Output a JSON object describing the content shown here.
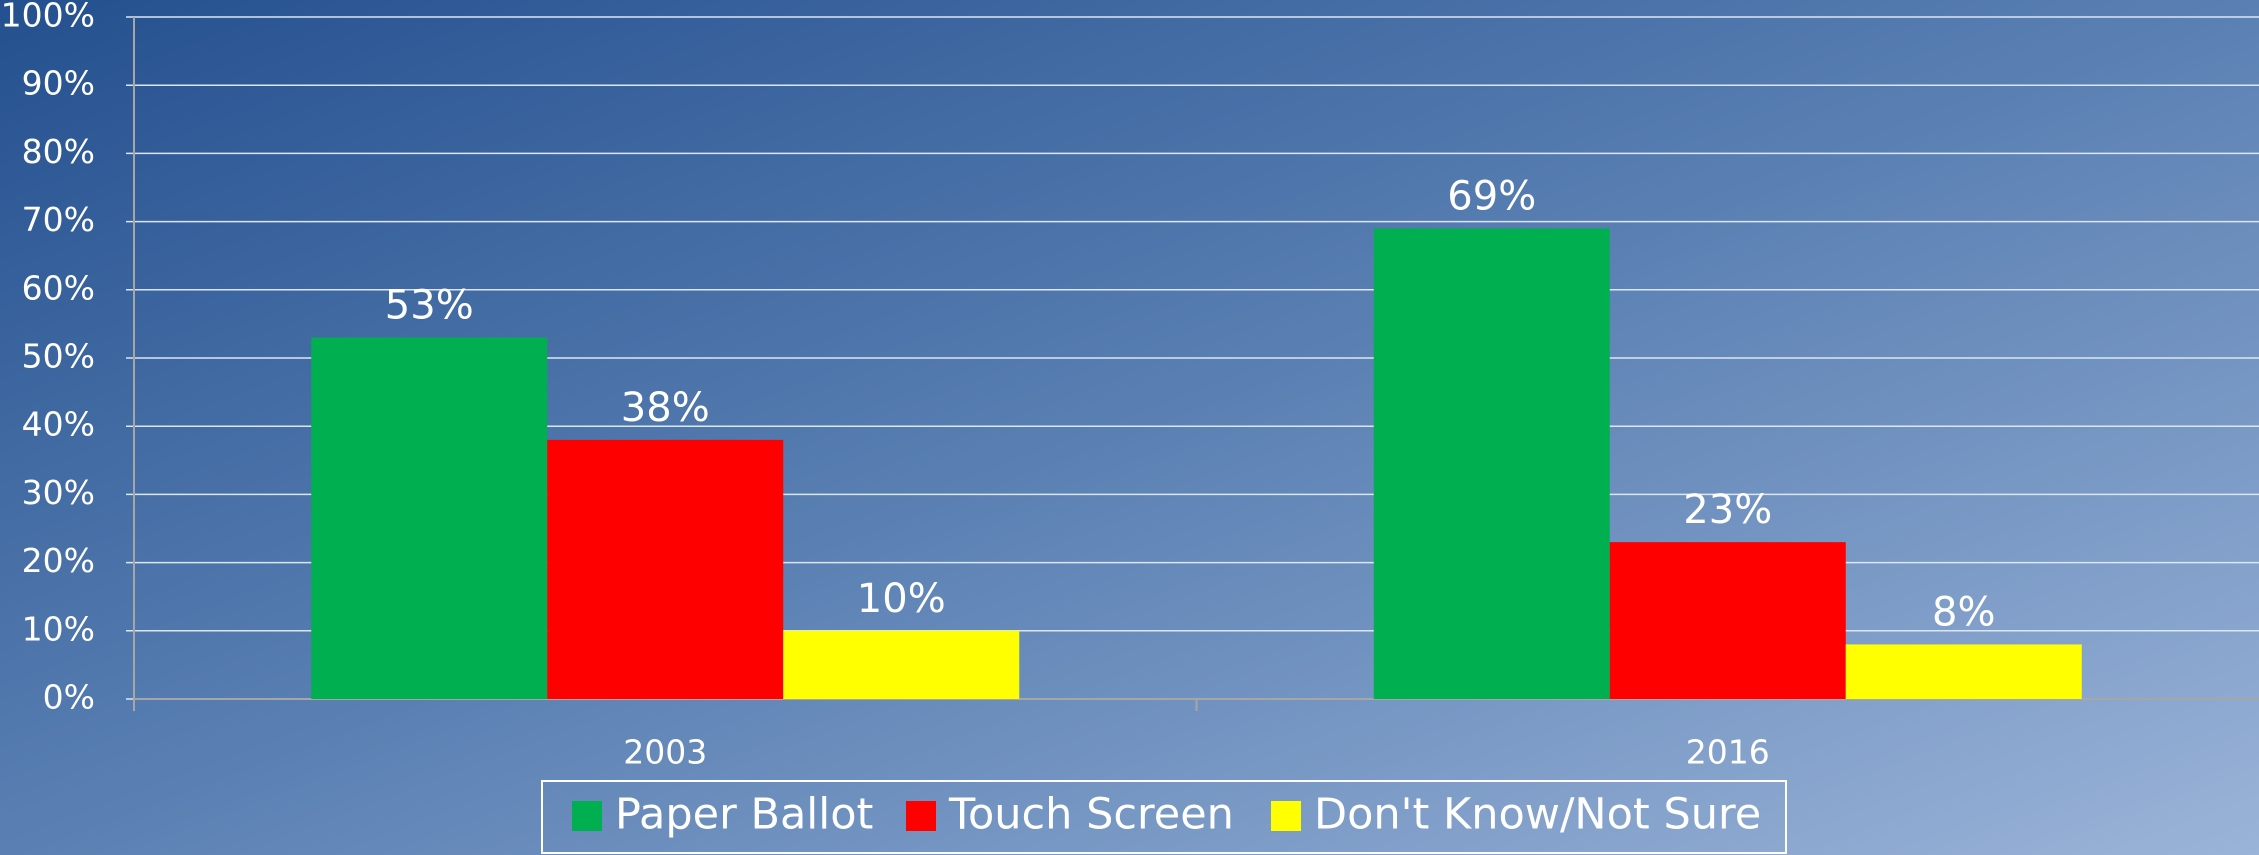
{
  "chart_data": {
    "type": "bar",
    "categories": [
      "2003",
      "2016"
    ],
    "series": [
      {
        "name": "Paper Ballot",
        "color": "#00b050",
        "values": [
          53,
          69
        ],
        "value_labels": [
          "53%",
          "69%"
        ]
      },
      {
        "name": "Touch Screen",
        "color": "#ff0000",
        "values": [
          38,
          23
        ],
        "value_labels": [
          "38%",
          "23%"
        ]
      },
      {
        "name": "Don't Know/Not Sure",
        "color": "#ffff00",
        "values": [
          10,
          8
        ],
        "value_labels": [
          "10%",
          "8%"
        ]
      }
    ],
    "ylim": [
      0,
      100
    ],
    "yticks": [
      {
        "value": 0,
        "label": "0%"
      },
      {
        "value": 10,
        "label": "10%"
      },
      {
        "value": 20,
        "label": "20%"
      },
      {
        "value": 30,
        "label": "30%"
      },
      {
        "value": 40,
        "label": "40%"
      },
      {
        "value": 50,
        "label": "50%"
      },
      {
        "value": 60,
        "label": "60%"
      },
      {
        "value": 70,
        "label": "70%"
      },
      {
        "value": 80,
        "label": "80%"
      },
      {
        "value": 90,
        "label": "90%"
      },
      {
        "value": 100,
        "label": "100%"
      }
    ],
    "grid": true,
    "legend": "bottom"
  }
}
